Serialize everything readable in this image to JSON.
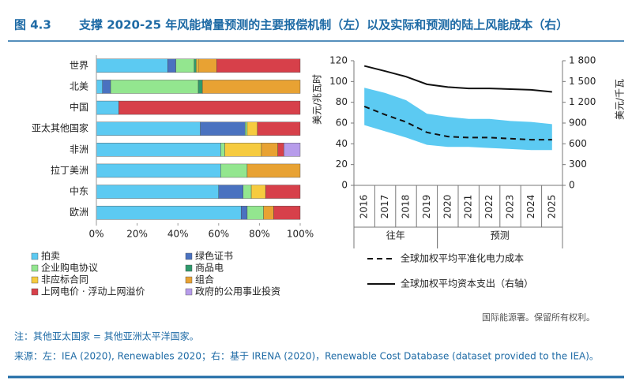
{
  "header": {
    "figure": "图 4.3",
    "title": "支撑 2020-25 年风能增量预测的主要报偿机制（左）以及实际和预测的陆上风能成本（右）"
  },
  "chart_data": [
    {
      "type": "stacked-hbar",
      "categories": [
        "世界",
        "北美",
        "中国",
        "亚太其他国家",
        "非洲",
        "拉丁美洲",
        "中东",
        "欧洲"
      ],
      "series": [
        {
          "name": "拍卖",
          "color": "#5ccaf2",
          "values": [
            35,
            3,
            11,
            51,
            61,
            61,
            60,
            71
          ]
        },
        {
          "name": "绿色证书",
          "color": "#4a72c0",
          "values": [
            4,
            4,
            0,
            22,
            0,
            0,
            12,
            3
          ]
        },
        {
          "name": "企业购电协议",
          "color": "#93e68f",
          "values": [
            9,
            43,
            0,
            1,
            2,
            13,
            4,
            8
          ]
        },
        {
          "name": "商品电",
          "color": "#2f9a6c",
          "values": [
            1,
            2,
            0,
            0,
            0,
            0,
            0,
            0
          ]
        },
        {
          "name": "非应标合同",
          "color": "#f6cb3f",
          "values": [
            1,
            0,
            0,
            5,
            18,
            0,
            7,
            0
          ]
        },
        {
          "name": "组合",
          "color": "#e8a233",
          "values": [
            9,
            48,
            0,
            0,
            8,
            26,
            0,
            5
          ]
        },
        {
          "name": "上网电价 · 浮动上网溢价",
          "color": "#d7404a",
          "values": [
            41,
            0,
            89,
            21,
            3,
            0,
            17,
            13
          ]
        },
        {
          "name": "政府的公用事业投资",
          "color": "#b79ceb",
          "values": [
            0,
            0,
            0,
            0,
            8,
            0,
            0,
            0
          ]
        }
      ],
      "xlim": [
        0,
        100
      ],
      "xticks": [
        {
          "value": 0,
          "label": "0%"
        },
        {
          "value": 20,
          "label": "20%"
        },
        {
          "value": 40,
          "label": "40%"
        },
        {
          "value": 60,
          "label": "60%"
        },
        {
          "value": 80,
          "label": "80%"
        },
        {
          "value": 100,
          "label": "100%"
        }
      ]
    },
    {
      "type": "line",
      "x": [
        "2016",
        "2017",
        "2018",
        "2019",
        "2020",
        "2021",
        "2022",
        "2023",
        "2024",
        "2025"
      ],
      "groups": [
        {
          "label": "往年",
          "span": 4
        },
        {
          "label": "预测",
          "span": 6
        }
      ],
      "y_label": "美元/兆瓦时",
      "y2_label": "美元/千瓦",
      "ylim": [
        0,
        120
      ],
      "yticks": [
        0,
        20,
        40,
        60,
        80,
        100,
        120
      ],
      "y2lim": [
        0,
        1800
      ],
      "y2ticks": [
        0,
        300,
        600,
        900,
        {
          "value": 1200,
          "label": "1 200"
        },
        {
          "value": 1500,
          "label": "1 500"
        },
        {
          "value": 1800,
          "label": "1 800"
        }
      ],
      "band": {
        "color": "#5ccaf2",
        "upper": [
          94,
          89,
          82,
          69,
          66,
          64,
          64,
          62,
          61,
          59
        ],
        "lower": [
          58,
          52,
          46,
          39,
          37,
          37,
          36,
          35,
          34,
          34
        ]
      },
      "series": [
        {
          "name": "全球加权平均平准化电力成本",
          "color": "#111111",
          "dashed": true,
          "values": [
            76,
            68,
            61,
            51,
            47,
            46,
            46,
            45,
            44,
            44
          ]
        },
        {
          "name": "全球加权平均资本支出（右轴）",
          "color": "#111111",
          "axis": "y2",
          "values": [
            1725,
            1650,
            1570,
            1460,
            1420,
            1400,
            1400,
            1390,
            1380,
            1350
          ]
        }
      ]
    }
  ],
  "footer": {
    "copyright": "国际能源署。保留所有权利。",
    "note": "注：其他亚太国家 = 其他亚洲太平洋国家。",
    "source": "来源：左：IEA (2020), Renewables 2020；右：基于 IRENA (2020)，Renewable Cost Database (dataset provided to the IEA)。"
  }
}
